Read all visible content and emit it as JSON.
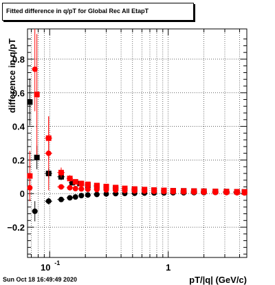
{
  "chart_data": {
    "type": "scatter",
    "title": "Fitted difference in q/pT for Global Rec All EtapT",
    "xlabel": "pT/|q| (GeV/c)",
    "ylabel": "difference in q/pT",
    "x_scale": "log",
    "xlim": [
      0.065,
      4.6
    ],
    "ylim": [
      -0.38,
      0.98
    ],
    "grid": true,
    "xticks": [
      {
        "value": 0.1,
        "label": "10",
        "exp": "-1"
      },
      {
        "value": 1,
        "label": "1"
      }
    ],
    "yticks": [
      -0.2,
      0,
      0.2,
      0.4,
      0.6,
      0.8
    ],
    "ytick_labels": [
      "−0.2",
      "0",
      "0.2",
      "0.4",
      "0.6",
      "0.8"
    ],
    "series": [
      {
        "color": "#000000",
        "marker": "square",
        "points": [
          {
            "x": 0.068,
            "y": 0.545,
            "err": 0.14,
            "xerr": 0.003
          },
          {
            "x": 0.078,
            "y": 0.215,
            "err": 0.07,
            "xerr": 0.004
          },
          {
            "x": 0.098,
            "y": 0.12,
            "err": 0.03,
            "xerr": 0.007
          },
          {
            "x": 0.125,
            "y": 0.1,
            "err": 0.02,
            "xerr": 0.009
          },
          {
            "x": 0.155,
            "y": 0.065,
            "err": 0.012,
            "xerr": 0.01
          },
          {
            "x": 0.18,
            "y": 0.06,
            "err": 0.01,
            "xerr": 0.01
          },
          {
            "x": 0.21,
            "y": 0.05,
            "err": 0.008,
            "xerr": 0.012
          },
          {
            "x": 0.25,
            "y": 0.045,
            "err": 0.007,
            "xerr": 0.014
          },
          {
            "x": 0.3,
            "y": 0.038,
            "err": 0.006,
            "xerr": 0.016
          },
          {
            "x": 0.36,
            "y": 0.033,
            "err": 0.005,
            "xerr": 0.02
          },
          {
            "x": 0.43,
            "y": 0.029,
            "err": 0.005,
            "xerr": 0.024
          },
          {
            "x": 0.52,
            "y": 0.026,
            "err": 0.005,
            "xerr": 0.03
          },
          {
            "x": 0.63,
            "y": 0.023,
            "err": 0.005,
            "xerr": 0.035
          },
          {
            "x": 0.76,
            "y": 0.02,
            "err": 0.005,
            "xerr": 0.04
          },
          {
            "x": 0.92,
            "y": 0.018,
            "err": 0.005,
            "xerr": 0.05
          },
          {
            "x": 1.1,
            "y": 0.017,
            "err": 0.006,
            "xerr": 0.06
          },
          {
            "x": 1.35,
            "y": 0.016,
            "err": 0.006,
            "xerr": 0.08
          },
          {
            "x": 1.65,
            "y": 0.015,
            "err": 0.007,
            "xerr": 0.1
          },
          {
            "x": 2.0,
            "y": 0.014,
            "err": 0.008,
            "xerr": 0.12
          },
          {
            "x": 2.5,
            "y": 0.013,
            "err": 0.009,
            "xerr": 0.15
          },
          {
            "x": 3.1,
            "y": 0.012,
            "err": 0.01,
            "xerr": 0.2
          },
          {
            "x": 3.8,
            "y": 0.011,
            "err": 0.012,
            "xerr": 0.25
          },
          {
            "x": 4.4,
            "y": 0.01,
            "err": 0.014,
            "xerr": 0.2
          }
        ]
      },
      {
        "color": "#000000",
        "marker": "circle",
        "points": [
          {
            "x": 0.075,
            "y": -0.105,
            "err": 0.06,
            "xerr": 0.004
          },
          {
            "x": 0.098,
            "y": -0.045,
            "err": 0.02,
            "xerr": 0.007
          },
          {
            "x": 0.125,
            "y": -0.035,
            "err": 0.012,
            "xerr": 0.009
          },
          {
            "x": 0.148,
            "y": -0.025,
            "err": 0.008,
            "xerr": 0.009
          },
          {
            "x": 0.165,
            "y": -0.02,
            "err": 0.007,
            "xerr": 0.008
          },
          {
            "x": 0.185,
            "y": -0.012,
            "err": 0.006,
            "xerr": 0.01
          },
          {
            "x": 0.21,
            "y": -0.008,
            "err": 0.005,
            "xerr": 0.012
          },
          {
            "x": 0.25,
            "y": -0.005,
            "err": 0.004,
            "xerr": 0.014
          },
          {
            "x": 0.3,
            "y": -0.002,
            "err": 0.004,
            "xerr": 0.016
          },
          {
            "x": 0.36,
            "y": 0.0,
            "err": 0.004,
            "xerr": 0.02
          },
          {
            "x": 0.43,
            "y": 0.001,
            "err": 0.004,
            "xerr": 0.024
          },
          {
            "x": 0.52,
            "y": 0.002,
            "err": 0.004,
            "xerr": 0.03
          },
          {
            "x": 0.63,
            "y": 0.003,
            "err": 0.004,
            "xerr": 0.035
          },
          {
            "x": 0.76,
            "y": 0.004,
            "err": 0.005,
            "xerr": 0.04
          },
          {
            "x": 0.92,
            "y": 0.004,
            "err": 0.005,
            "xerr": 0.05
          },
          {
            "x": 1.1,
            "y": 0.005,
            "err": 0.005,
            "xerr": 0.06
          },
          {
            "x": 1.35,
            "y": 0.005,
            "err": 0.006,
            "xerr": 0.08
          },
          {
            "x": 1.65,
            "y": 0.006,
            "err": 0.007,
            "xerr": 0.1
          },
          {
            "x": 2.0,
            "y": 0.006,
            "err": 0.008,
            "xerr": 0.12
          },
          {
            "x": 2.5,
            "y": 0.007,
            "err": 0.009,
            "xerr": 0.15
          },
          {
            "x": 3.1,
            "y": 0.007,
            "err": 0.01,
            "xerr": 0.2
          },
          {
            "x": 3.8,
            "y": 0.008,
            "err": 0.012,
            "xerr": 0.25
          },
          {
            "x": 4.4,
            "y": 0.008,
            "err": 0.014,
            "xerr": 0.2
          }
        ]
      },
      {
        "color": "#ff0000",
        "marker": "square",
        "points": [
          {
            "x": 0.068,
            "y": 0.105,
            "err": 0.15,
            "xerr": 0.003
          },
          {
            "x": 0.078,
            "y": 0.59,
            "err": 0.36,
            "xerr": 0.004
          },
          {
            "x": 0.098,
            "y": 0.33,
            "err": 0.13,
            "xerr": 0.007
          },
          {
            "x": 0.125,
            "y": 0.125,
            "err": 0.03,
            "xerr": 0.009
          },
          {
            "x": 0.148,
            "y": 0.09,
            "err": 0.02,
            "xerr": 0.009
          },
          {
            "x": 0.165,
            "y": 0.07,
            "err": 0.015,
            "xerr": 0.008
          },
          {
            "x": 0.185,
            "y": 0.06,
            "err": 0.012,
            "xerr": 0.01
          },
          {
            "x": 0.21,
            "y": 0.055,
            "err": 0.01,
            "xerr": 0.012
          },
          {
            "x": 0.25,
            "y": 0.048,
            "err": 0.008,
            "xerr": 0.014
          },
          {
            "x": 0.3,
            "y": 0.042,
            "err": 0.007,
            "xerr": 0.016
          },
          {
            "x": 0.36,
            "y": 0.036,
            "err": 0.006,
            "xerr": 0.02
          },
          {
            "x": 0.43,
            "y": 0.031,
            "err": 0.006,
            "xerr": 0.024
          },
          {
            "x": 0.52,
            "y": 0.027,
            "err": 0.006,
            "xerr": 0.03
          },
          {
            "x": 0.63,
            "y": 0.024,
            "err": 0.006,
            "xerr": 0.035
          },
          {
            "x": 0.76,
            "y": 0.021,
            "err": 0.006,
            "xerr": 0.04
          },
          {
            "x": 0.92,
            "y": 0.019,
            "err": 0.006,
            "xerr": 0.05
          },
          {
            "x": 1.1,
            "y": 0.017,
            "err": 0.007,
            "xerr": 0.06
          },
          {
            "x": 1.35,
            "y": 0.016,
            "err": 0.007,
            "xerr": 0.08
          },
          {
            "x": 1.65,
            "y": 0.015,
            "err": 0.008,
            "xerr": 0.1
          },
          {
            "x": 2.0,
            "y": 0.014,
            "err": 0.009,
            "xerr": 0.12
          },
          {
            "x": 2.5,
            "y": 0.013,
            "err": 0.01,
            "xerr": 0.15
          },
          {
            "x": 3.1,
            "y": 0.012,
            "err": 0.011,
            "xerr": 0.2
          },
          {
            "x": 3.8,
            "y": 0.011,
            "err": 0.013,
            "xerr": 0.25
          },
          {
            "x": 4.4,
            "y": 0.01,
            "err": 0.015,
            "xerr": 0.2
          }
        ]
      },
      {
        "color": "#ff0000",
        "marker": "circle",
        "points": [
          {
            "x": 0.068,
            "y": 0.035,
            "err": 0.05,
            "xerr": 0.003
          },
          {
            "x": 0.075,
            "y": 0.74,
            "err": 0.25,
            "xerr": 0.004
          },
          {
            "x": 0.098,
            "y": 0.24,
            "err": 0.22,
            "xerr": 0.007
          },
          {
            "x": 0.125,
            "y": 0.04,
            "err": 0.012,
            "xerr": 0.009
          },
          {
            "x": 0.148,
            "y": 0.035,
            "err": 0.009,
            "xerr": 0.009
          },
          {
            "x": 0.165,
            "y": 0.03,
            "err": 0.008,
            "xerr": 0.008
          },
          {
            "x": 0.185,
            "y": 0.028,
            "err": 0.007,
            "xerr": 0.01
          },
          {
            "x": 0.21,
            "y": 0.026,
            "err": 0.006,
            "xerr": 0.012
          },
          {
            "x": 0.25,
            "y": 0.024,
            "err": 0.005,
            "xerr": 0.014
          },
          {
            "x": 0.3,
            "y": 0.022,
            "err": 0.005,
            "xerr": 0.016
          },
          {
            "x": 0.36,
            "y": 0.02,
            "err": 0.005,
            "xerr": 0.02
          },
          {
            "x": 0.43,
            "y": 0.018,
            "err": 0.005,
            "xerr": 0.024
          },
          {
            "x": 0.52,
            "y": 0.016,
            "err": 0.005,
            "xerr": 0.03
          },
          {
            "x": 0.63,
            "y": 0.015,
            "err": 0.005,
            "xerr": 0.035
          },
          {
            "x": 0.76,
            "y": 0.013,
            "err": 0.005,
            "xerr": 0.04
          },
          {
            "x": 0.92,
            "y": 0.012,
            "err": 0.005,
            "xerr": 0.05
          },
          {
            "x": 1.1,
            "y": 0.011,
            "err": 0.006,
            "xerr": 0.06
          },
          {
            "x": 1.35,
            "y": 0.01,
            "err": 0.006,
            "xerr": 0.08
          },
          {
            "x": 1.65,
            "y": 0.009,
            "err": 0.007,
            "xerr": 0.1
          },
          {
            "x": 2.0,
            "y": 0.008,
            "err": 0.008,
            "xerr": 0.12
          },
          {
            "x": 2.5,
            "y": 0.007,
            "err": 0.009,
            "xerr": 0.15
          },
          {
            "x": 3.1,
            "y": 0.006,
            "err": 0.01,
            "xerr": 0.2
          },
          {
            "x": 3.8,
            "y": 0.005,
            "err": 0.012,
            "xerr": 0.25
          },
          {
            "x": 4.4,
            "y": 0.004,
            "err": 0.014,
            "xerr": 0.2
          }
        ]
      }
    ]
  },
  "footer": {
    "datestamp": "Sun Oct 18 16:49:49 2020"
  }
}
